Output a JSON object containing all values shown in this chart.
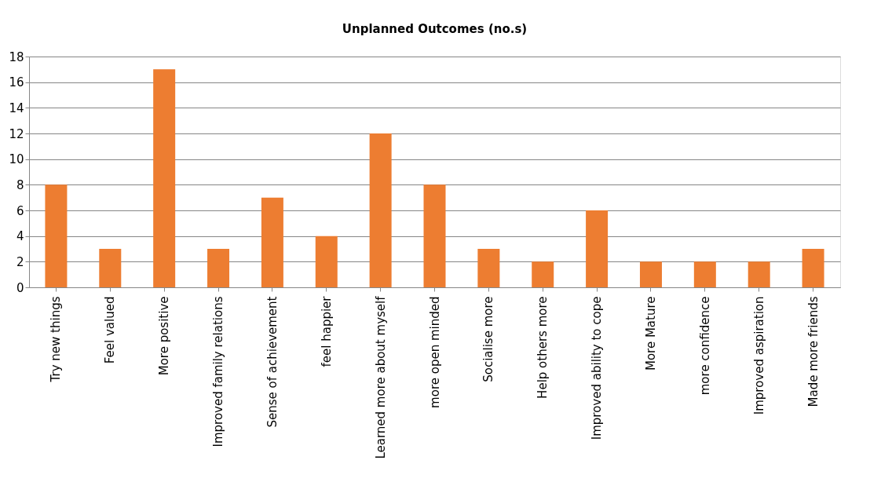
{
  "chart_data": {
    "type": "bar",
    "title": "Unplanned Outcomes (no.s)",
    "categories": [
      "Try new things",
      "Feel valued",
      "More positive",
      "Improved family relations",
      "Sense of achievement",
      "feel happier",
      "Learned more about myself",
      "more open minded",
      "Socialise more",
      "Help others more",
      "Improved ability to cope",
      "More Mature",
      "more confidence",
      "Improved aspiration",
      "Made more friends"
    ],
    "values": [
      8,
      3,
      17,
      3,
      7,
      4,
      12,
      8,
      3,
      2,
      6,
      2,
      2,
      2,
      3
    ],
    "color": "#ed7d31",
    "ylim": [
      0,
      18
    ],
    "yticks": [
      0,
      2,
      4,
      6,
      8,
      10,
      12,
      14,
      16,
      18
    ],
    "grid": "y"
  }
}
